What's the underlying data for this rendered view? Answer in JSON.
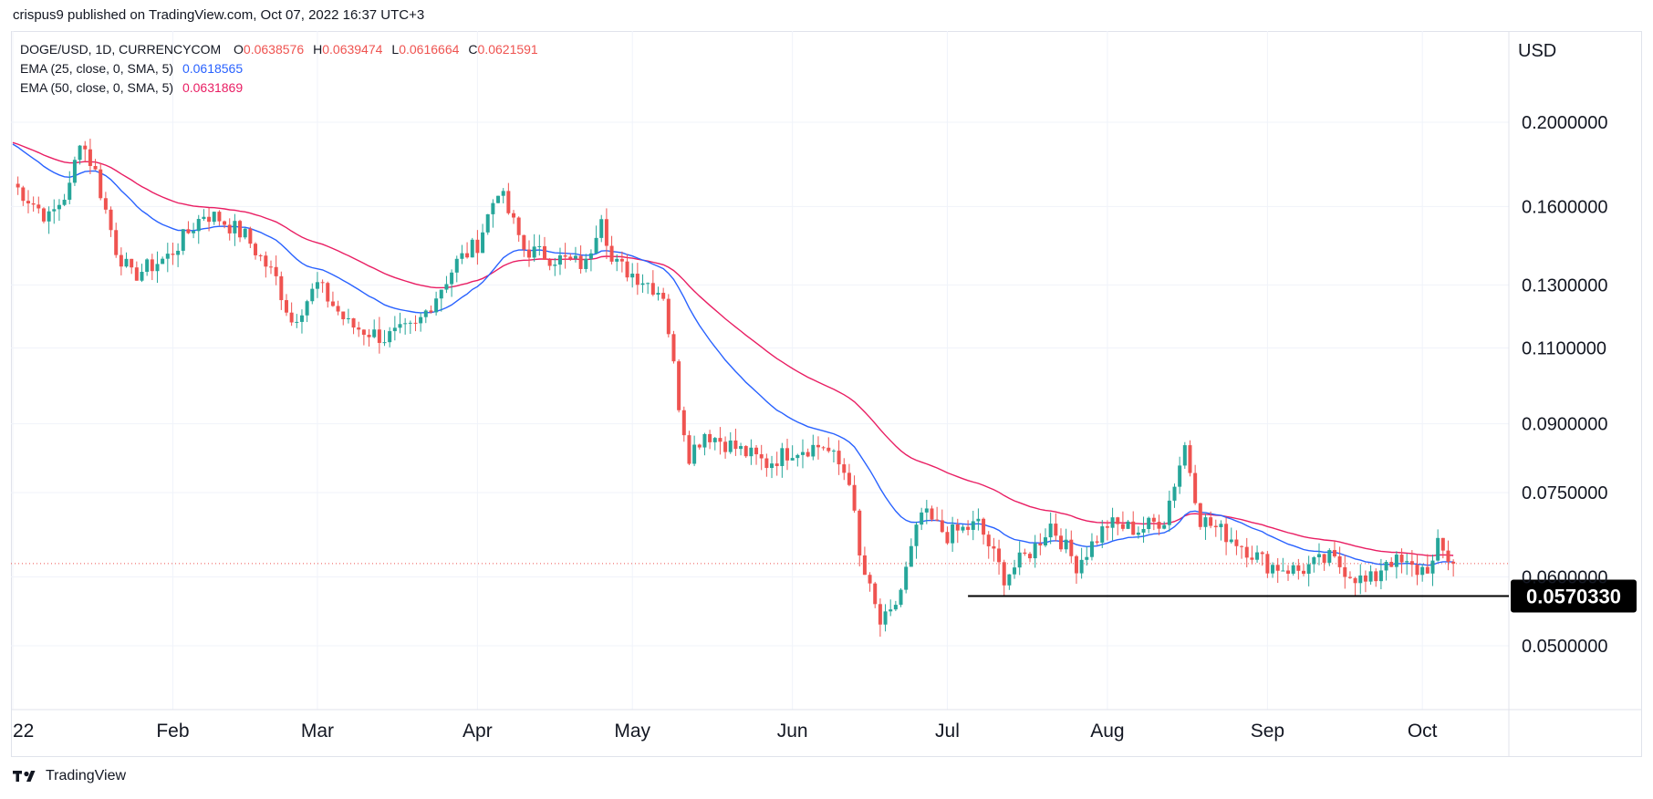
{
  "caption": "crispus9 published on TradingView.com, Oct 07, 2022 16:37 UTC+3",
  "brand": "TradingView",
  "legend": {
    "symbol": "DOGE/USD, 1D, CURRENCYCOM",
    "ohlc": [
      {
        "key": "O",
        "value": "0.0638576"
      },
      {
        "key": "H",
        "value": "0.0639474"
      },
      {
        "key": "L",
        "value": "0.0616664"
      },
      {
        "key": "C",
        "value": "0.0621591"
      }
    ],
    "ema25_label": "EMA (25, close, 0, SMA, 5)",
    "ema25_value": "0.0618565",
    "ema50_label": "EMA (50, close, 0, SMA, 5)",
    "ema50_value": "0.0631869"
  },
  "colors": {
    "up": "#26a69a",
    "down": "#ef5350",
    "ema25": "#2962ff",
    "ema50": "#e91e63",
    "support": "#000000",
    "grid": "#f0f3fa"
  },
  "chart_data": {
    "type": "candlestick",
    "y_unit": "USD",
    "y_scale": "log",
    "ylim": [
      0.042,
      0.23
    ],
    "y_ticks": [
      "0.2000000",
      "0.1600000",
      "0.1300000",
      "0.1100000",
      "0.0900000",
      "0.0750000",
      "0.0600000",
      "0.0500000"
    ],
    "x_ticks": [
      "22",
      "Feb",
      "Mar",
      "Apr",
      "May",
      "Jun",
      "Jul",
      "Aug",
      "Sep",
      "Oct"
    ],
    "x_start": "2022-01-01",
    "x_end": "2022-10-07",
    "support_level": {
      "label": "0.0570330",
      "value": 0.057033,
      "from": "2022-07-05",
      "to": "2022-10-07"
    },
    "last_price": 0.0621591,
    "price_anchors": [
      [
        "2022-01-01",
        0.17
      ],
      [
        "2022-01-08",
        0.155
      ],
      [
        "2022-01-12",
        0.168
      ],
      [
        "2022-01-14",
        0.192
      ],
      [
        "2022-01-17",
        0.175
      ],
      [
        "2022-01-21",
        0.143
      ],
      [
        "2022-01-24",
        0.133
      ],
      [
        "2022-01-31",
        0.14
      ],
      [
        "2022-02-07",
        0.157
      ],
      [
        "2022-02-10",
        0.155
      ],
      [
        "2022-02-15",
        0.148
      ],
      [
        "2022-02-21",
        0.132
      ],
      [
        "2022-02-24",
        0.118
      ],
      [
        "2022-03-01",
        0.13
      ],
      [
        "2022-03-07",
        0.117
      ],
      [
        "2022-03-14",
        0.113
      ],
      [
        "2022-03-20",
        0.116
      ],
      [
        "2022-03-28",
        0.138
      ],
      [
        "2022-04-01",
        0.145
      ],
      [
        "2022-04-05",
        0.168
      ],
      [
        "2022-04-10",
        0.143
      ],
      [
        "2022-04-15",
        0.14
      ],
      [
        "2022-04-22",
        0.137
      ],
      [
        "2022-04-25",
        0.158
      ],
      [
        "2022-04-27",
        0.138
      ],
      [
        "2022-05-03",
        0.132
      ],
      [
        "2022-05-07",
        0.127
      ],
      [
        "2022-05-10",
        0.095
      ],
      [
        "2022-05-12",
        0.083
      ],
      [
        "2022-05-15",
        0.088
      ],
      [
        "2022-05-20",
        0.085
      ],
      [
        "2022-05-27",
        0.081
      ],
      [
        "2022-06-01",
        0.084
      ],
      [
        "2022-06-07",
        0.085
      ],
      [
        "2022-06-12",
        0.078
      ],
      [
        "2022-06-14",
        0.063
      ],
      [
        "2022-06-18",
        0.053
      ],
      [
        "2022-06-20",
        0.054
      ],
      [
        "2022-06-22",
        0.058
      ],
      [
        "2022-06-26",
        0.071
      ],
      [
        "2022-07-01",
        0.067
      ],
      [
        "2022-07-07",
        0.069
      ],
      [
        "2022-07-12",
        0.06
      ],
      [
        "2022-07-18",
        0.065
      ],
      [
        "2022-07-21",
        0.069
      ],
      [
        "2022-07-26",
        0.062
      ],
      [
        "2022-08-01",
        0.069
      ],
      [
        "2022-08-07",
        0.068
      ],
      [
        "2022-08-12",
        0.07
      ],
      [
        "2022-08-16",
        0.085
      ],
      [
        "2022-08-19",
        0.07
      ],
      [
        "2022-08-26",
        0.066
      ],
      [
        "2022-09-01",
        0.062
      ],
      [
        "2022-09-07",
        0.061
      ],
      [
        "2022-09-13",
        0.063
      ],
      [
        "2022-09-20",
        0.059
      ],
      [
        "2022-09-22",
        0.06
      ],
      [
        "2022-09-24",
        0.063
      ],
      [
        "2022-09-30",
        0.061
      ],
      [
        "2022-10-03",
        0.062
      ],
      [
        "2022-10-04",
        0.065
      ],
      [
        "2022-10-07",
        0.062
      ]
    ]
  }
}
